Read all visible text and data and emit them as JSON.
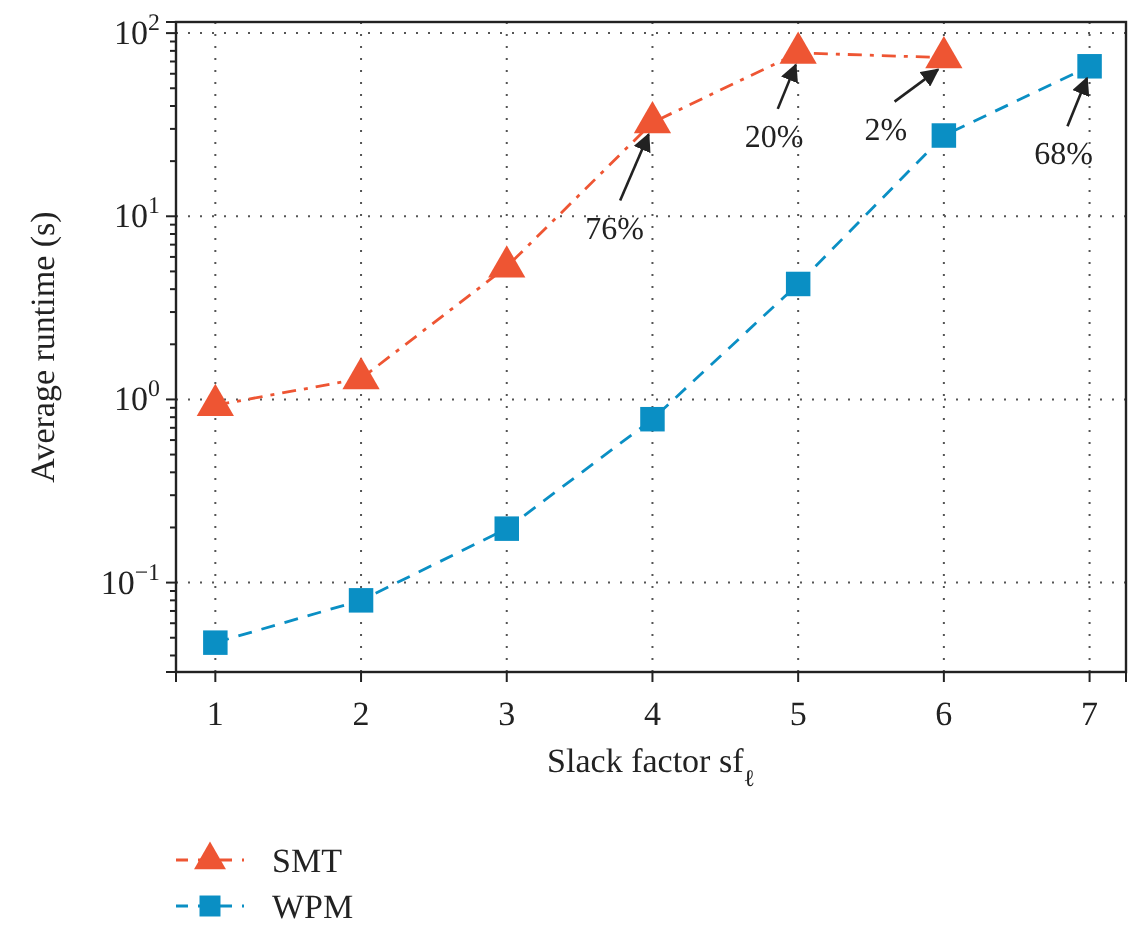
{
  "chart_data": {
    "type": "line",
    "xlabel": "Slack factor sf$_{ℓ}$",
    "ylabel": "Average runtime (s)",
    "x": [
      1,
      2,
      3,
      4,
      5,
      6,
      7
    ],
    "series": [
      {
        "name": "SMT",
        "color": "#ee5533",
        "marker": "triangle",
        "line_style": "dashdot",
        "values": [
          0.93,
          1.3,
          5.3,
          32.5,
          78,
          73.5,
          null
        ]
      },
      {
        "name": "WPM",
        "color": "#0a8fc4",
        "marker": "square",
        "line_style": "dashed",
        "values": [
          0.047,
          0.08,
          0.197,
          0.78,
          4.27,
          27.6,
          65.9
        ]
      }
    ],
    "log": "y",
    "xlim": [
      0.73,
      7.25
    ],
    "ylim": [
      0.0325,
      115
    ],
    "xticks": [
      1,
      2,
      3,
      4,
      5,
      6,
      7
    ],
    "yticks": [
      {
        "value": 0.04,
        "label": null
      },
      {
        "value": 0.05,
        "label": null
      },
      {
        "value": 0.06,
        "label": null
      },
      {
        "value": 0.07,
        "label": null
      },
      {
        "value": 0.08,
        "label": null
      },
      {
        "value": 0.09,
        "label": null
      },
      {
        "value": 0.1,
        "label": "10$^{−1}$"
      },
      {
        "value": 0.2,
        "label": null
      },
      {
        "value": 0.3,
        "label": null
      },
      {
        "value": 0.4,
        "label": null
      },
      {
        "value": 0.5,
        "label": null
      },
      {
        "value": 0.6,
        "label": null
      },
      {
        "value": 0.7,
        "label": null
      },
      {
        "value": 0.8,
        "label": null
      },
      {
        "value": 0.9,
        "label": null
      },
      {
        "value": 1,
        "label": "10$^{0}$"
      },
      {
        "value": 2,
        "label": null
      },
      {
        "value": 3,
        "label": null
      },
      {
        "value": 4,
        "label": null
      },
      {
        "value": 5,
        "label": null
      },
      {
        "value": 6,
        "label": null
      },
      {
        "value": 7,
        "label": null
      },
      {
        "value": 8,
        "label": null
      },
      {
        "value": 9,
        "label": null
      },
      {
        "value": 10,
        "label": "10$^{1}$"
      },
      {
        "value": 20,
        "label": null
      },
      {
        "value": 30,
        "label": null
      },
      {
        "value": 40,
        "label": null
      },
      {
        "value": 50,
        "label": null
      },
      {
        "value": 60,
        "label": null
      },
      {
        "value": 70,
        "label": null
      },
      {
        "value": 80,
        "label": null
      },
      {
        "value": 90,
        "label": null
      },
      {
        "value": 100,
        "label": "10$^{2}$"
      }
    ],
    "grid": true,
    "legend": "bottom left",
    "annotations": [
      {
        "text": "76%",
        "x": 4,
        "y": 32.5
      },
      {
        "text": "20%",
        "x": 5,
        "y": 78
      },
      {
        "text": "2%",
        "x": 6,
        "y": 73.5
      },
      {
        "text": "68%",
        "x": 7,
        "y": 65.9
      }
    ]
  }
}
